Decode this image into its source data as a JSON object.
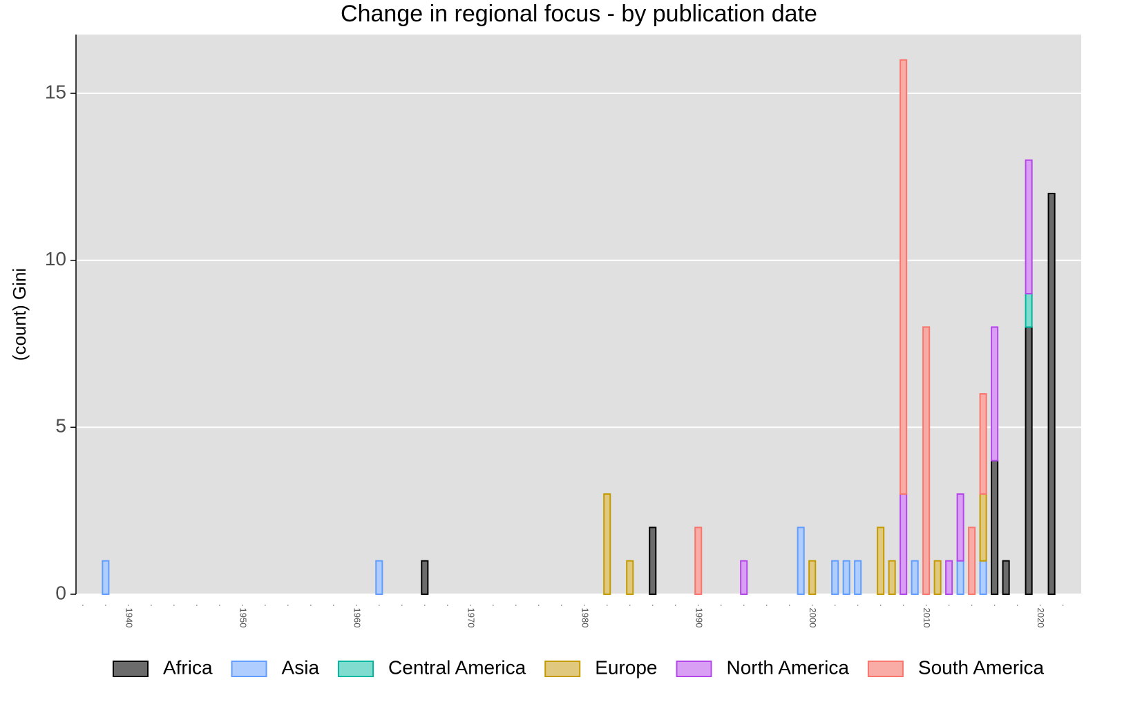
{
  "chart_data": {
    "type": "bar",
    "stacked": true,
    "title": "Change in regional focus - by publication date",
    "ylabel": "(count) Gini",
    "x": [
      1938,
      1962,
      1966,
      1982,
      1984,
      1986,
      1990,
      1994,
      1999,
      2000,
      2002,
      2003,
      2004,
      2006,
      2007,
      2008,
      2009,
      2010,
      2011,
      2012,
      2013,
      2014,
      2015,
      2016,
      2017,
      2019,
      2021
    ],
    "series": [
      {
        "name": "Africa",
        "color": "#6b6b6b",
        "edgecolor": "#000000",
        "values": [
          null,
          null,
          1,
          null,
          null,
          2,
          null,
          null,
          null,
          null,
          null,
          null,
          null,
          null,
          null,
          null,
          null,
          null,
          null,
          null,
          null,
          null,
          null,
          4,
          1,
          8,
          12
        ]
      },
      {
        "name": "Asia",
        "color": "#b0cdff",
        "edgecolor": "#619cff",
        "values": [
          1,
          1,
          null,
          null,
          null,
          null,
          null,
          null,
          2,
          null,
          1,
          1,
          1,
          null,
          null,
          null,
          1,
          null,
          null,
          null,
          1,
          null,
          1,
          null,
          null,
          null,
          null
        ]
      },
      {
        "name": "Central America",
        "color": "#7fdccf",
        "edgecolor": "#00b8a0",
        "values": [
          null,
          null,
          null,
          null,
          null,
          null,
          null,
          null,
          null,
          null,
          null,
          null,
          null,
          null,
          null,
          null,
          null,
          null,
          null,
          null,
          null,
          null,
          null,
          null,
          null,
          1,
          null
        ]
      },
      {
        "name": "Europe",
        "color": "#e0c97e",
        "edgecolor": "#c49a00",
        "values": [
          null,
          null,
          null,
          3,
          1,
          null,
          null,
          null,
          null,
          1,
          null,
          null,
          null,
          2,
          1,
          null,
          null,
          null,
          1,
          null,
          null,
          null,
          2,
          null,
          null,
          null,
          null
        ]
      },
      {
        "name": "North America",
        "color": "#d99ff5",
        "edgecolor": "#b447e8",
        "values": [
          null,
          null,
          null,
          null,
          null,
          null,
          null,
          1,
          null,
          null,
          null,
          null,
          null,
          null,
          null,
          3,
          null,
          null,
          null,
          1,
          2,
          null,
          null,
          4,
          null,
          4,
          null
        ]
      },
      {
        "name": "South America",
        "color": "#f9aba6",
        "edgecolor": "#f8766d",
        "values": [
          null,
          null,
          null,
          null,
          null,
          null,
          2,
          null,
          null,
          null,
          null,
          null,
          null,
          null,
          null,
          13,
          null,
          8,
          null,
          null,
          null,
          2,
          3,
          null,
          null,
          null,
          null
        ]
      }
    ],
    "xlim": [
      1935.4,
      2023.6
    ],
    "xticks": [
      1940,
      1950,
      1960,
      1970,
      1980,
      1990,
      2000,
      2010,
      2020
    ],
    "ylim": [
      0,
      16.76
    ],
    "yticks": [
      0,
      5,
      10,
      15
    ],
    "grid": true,
    "legend": "bottom"
  }
}
